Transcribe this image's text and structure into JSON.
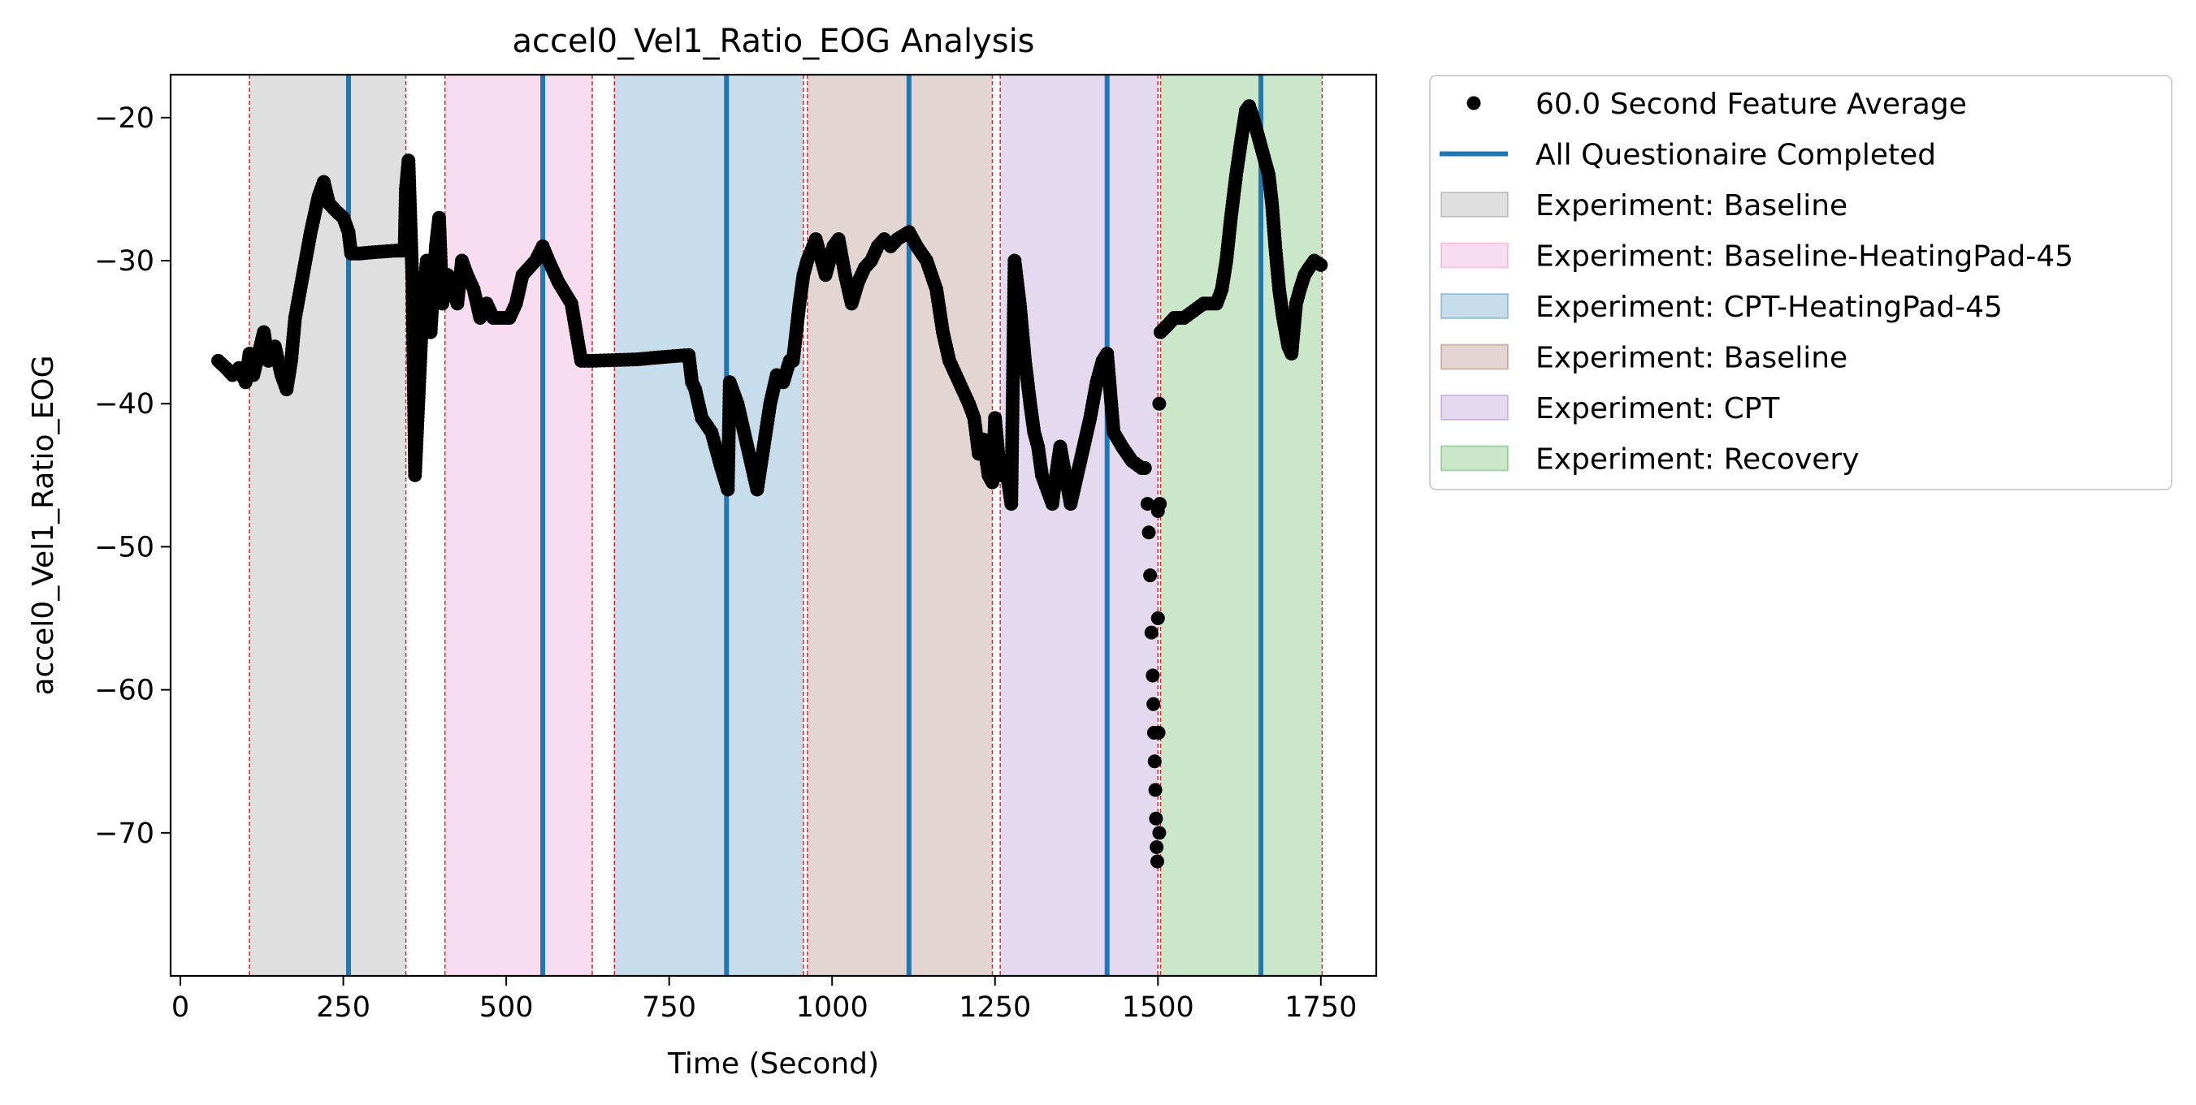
{
  "chart_data": {
    "type": "scatter",
    "title": "accel0_Vel1_Ratio_EOG Analysis",
    "xlabel": "Time (Second)",
    "ylabel": "accel0_Vel1_Ratio_EOG",
    "xlim": [
      -15,
      1835
    ],
    "ylim": [
      -80,
      -17
    ],
    "xticks": [
      0,
      250,
      500,
      750,
      1000,
      1250,
      1500,
      1750
    ],
    "xtick_labels": [
      "0",
      "250",
      "500",
      "750",
      "1000",
      "1250",
      "1500",
      "1750"
    ],
    "yticks": [
      -20,
      -30,
      -40,
      -50,
      -60,
      -70
    ],
    "ytick_labels": [
      "−20",
      "−30",
      "−40",
      "−50",
      "−60",
      "−70"
    ],
    "grid": false,
    "legend_position": "outside-right-top",
    "legend": [
      {
        "label": "60.0 Second Feature Average",
        "kind": "marker",
        "color": "#000000"
      },
      {
        "label": "All Questionaire Completed",
        "kind": "line",
        "color": "#1f77b4"
      },
      {
        "label": "Experiment: Baseline",
        "kind": "patch",
        "color": "#7f7f7f"
      },
      {
        "label": "Experiment: Baseline-HeatingPad-45",
        "kind": "patch",
        "color": "#e377c2"
      },
      {
        "label": "Experiment: CPT-HeatingPad-45",
        "kind": "patch",
        "color": "#1f77b4"
      },
      {
        "label": "Experiment: Baseline",
        "kind": "patch",
        "color": "#8c564b"
      },
      {
        "label": "Experiment: CPT",
        "kind": "patch",
        "color": "#9467bd"
      },
      {
        "label": "Experiment: Recovery",
        "kind": "patch",
        "color": "#2ca02c"
      }
    ],
    "spans": [
      {
        "start": 106,
        "end": 346,
        "color": "#7f7f7f"
      },
      {
        "start": 406,
        "end": 632,
        "color": "#e377c2"
      },
      {
        "start": 666,
        "end": 956,
        "color": "#1f77b4"
      },
      {
        "start": 962,
        "end": 1246,
        "color": "#8c564b"
      },
      {
        "start": 1258,
        "end": 1500,
        "color": "#9467bd"
      },
      {
        "start": 1504,
        "end": 1752,
        "color": "#2ca02c"
      }
    ],
    "boundary_lines": [
      106,
      346,
      406,
      632,
      666,
      956,
      962,
      1246,
      1258,
      1500,
      1504,
      1752
    ],
    "questionnaire_lines": [
      258,
      556,
      838,
      1118,
      1422,
      1658
    ],
    "series": [
      {
        "name": "60.0 Second Feature Average",
        "color": "#000000",
        "knots": [
          [
            58,
            -37
          ],
          [
            70,
            -37.5
          ],
          [
            80,
            -38
          ],
          [
            90,
            -37.5
          ],
          [
            100,
            -38.5
          ],
          [
            106,
            -36.5
          ],
          [
            112,
            -38
          ],
          [
            120,
            -36.5
          ],
          [
            128,
            -35
          ],
          [
            135,
            -37
          ],
          [
            145,
            -36
          ],
          [
            155,
            -38
          ],
          [
            163,
            -39
          ],
          [
            170,
            -37
          ],
          [
            176,
            -34
          ],
          [
            188,
            -31
          ],
          [
            200,
            -28
          ],
          [
            212,
            -25.5
          ],
          [
            220,
            -24.5
          ],
          [
            228,
            -26
          ],
          [
            238,
            -26.5
          ],
          [
            250,
            -27
          ],
          [
            258,
            -28
          ],
          [
            262,
            -29.5
          ],
          [
            275,
            -29.5
          ],
          [
            300,
            -29.4
          ],
          [
            330,
            -29.3
          ],
          [
            344,
            -29.3
          ],
          [
            346,
            -25
          ],
          [
            350,
            -23
          ],
          [
            356,
            -31.3
          ],
          [
            360,
            -45
          ],
          [
            366,
            -39
          ],
          [
            372,
            -33
          ],
          [
            378,
            -30
          ],
          [
            384,
            -35
          ],
          [
            392,
            -29
          ],
          [
            397,
            -27
          ],
          [
            402,
            -33
          ],
          [
            410,
            -31
          ],
          [
            418,
            -32
          ],
          [
            425,
            -33
          ],
          [
            432,
            -30
          ],
          [
            440,
            -31
          ],
          [
            450,
            -32
          ],
          [
            460,
            -34
          ],
          [
            470,
            -33
          ],
          [
            480,
            -34
          ],
          [
            495,
            -34
          ],
          [
            505,
            -34
          ],
          [
            515,
            -33
          ],
          [
            525,
            -31
          ],
          [
            535,
            -30.5
          ],
          [
            545,
            -30
          ],
          [
            556,
            -29
          ],
          [
            565,
            -30
          ],
          [
            580,
            -31.5
          ],
          [
            600,
            -33
          ],
          [
            615,
            -37
          ],
          [
            632,
            -37
          ],
          [
            700,
            -36.9
          ],
          [
            750,
            -36.7
          ],
          [
            780,
            -36.6
          ],
          [
            785,
            -38.5
          ],
          [
            790,
            -39
          ],
          [
            800,
            -41
          ],
          [
            815,
            -42
          ],
          [
            830,
            -44.5
          ],
          [
            840,
            -46
          ],
          [
            843,
            -38.5
          ],
          [
            855,
            -40
          ],
          [
            865,
            -42
          ],
          [
            875,
            -44
          ],
          [
            885,
            -46
          ],
          [
            895,
            -43
          ],
          [
            905,
            -40
          ],
          [
            915,
            -38
          ],
          [
            925,
            -38.5
          ],
          [
            935,
            -37
          ],
          [
            940,
            -37
          ],
          [
            945,
            -35
          ],
          [
            950,
            -33
          ],
          [
            956,
            -31
          ],
          [
            962,
            -30
          ],
          [
            975,
            -28.5
          ],
          [
            990,
            -31
          ],
          [
            1002,
            -29
          ],
          [
            1010,
            -28.5
          ],
          [
            1020,
            -31
          ],
          [
            1030,
            -33
          ],
          [
            1040,
            -31.5
          ],
          [
            1050,
            -30.5
          ],
          [
            1060,
            -30
          ],
          [
            1070,
            -29
          ],
          [
            1080,
            -28.5
          ],
          [
            1090,
            -29
          ],
          [
            1100,
            -28.5
          ],
          [
            1118,
            -28
          ],
          [
            1130,
            -29
          ],
          [
            1145,
            -30
          ],
          [
            1160,
            -32
          ],
          [
            1170,
            -35
          ],
          [
            1180,
            -37
          ],
          [
            1190,
            -38
          ],
          [
            1200,
            -39
          ],
          [
            1210,
            -40
          ],
          [
            1218,
            -41
          ],
          [
            1225,
            -43.5
          ],
          [
            1232,
            -42.5
          ],
          [
            1240,
            -45
          ],
          [
            1246,
            -45.5
          ],
          [
            1250,
            -41
          ],
          [
            1258,
            -45
          ],
          [
            1265,
            -44
          ],
          [
            1272,
            -46
          ],
          [
            1275,
            -47
          ],
          [
            1280,
            -30
          ],
          [
            1288,
            -33
          ],
          [
            1296,
            -37
          ],
          [
            1304,
            -40
          ],
          [
            1310,
            -42
          ],
          [
            1316,
            -43
          ],
          [
            1322,
            -45
          ],
          [
            1330,
            -46
          ],
          [
            1338,
            -47
          ],
          [
            1342,
            -45.5
          ],
          [
            1350,
            -43
          ],
          [
            1358,
            -45
          ],
          [
            1366,
            -47
          ],
          [
            1376,
            -45
          ],
          [
            1386,
            -43
          ],
          [
            1396,
            -41
          ],
          [
            1406,
            -38.5
          ],
          [
            1415,
            -37
          ],
          [
            1422,
            -36.5
          ],
          [
            1432,
            -42
          ],
          [
            1445,
            -43
          ],
          [
            1460,
            -44
          ],
          [
            1475,
            -44.5
          ],
          [
            1480,
            -44.5
          ]
        ],
        "drop": [
          [
            1484,
            -47
          ],
          [
            1486,
            -49
          ],
          [
            1488,
            -52
          ],
          [
            1490,
            -56
          ],
          [
            1492,
            -59
          ],
          [
            1493,
            -61
          ],
          [
            1494,
            -63
          ],
          [
            1495,
            -65
          ],
          [
            1496,
            -67
          ],
          [
            1497,
            -69
          ],
          [
            1498,
            -71
          ],
          [
            1499,
            -72
          ],
          [
            1500,
            -47.5
          ],
          [
            1500,
            -55
          ],
          [
            1501,
            -63
          ],
          [
            1502,
            -70
          ],
          [
            1502,
            -40
          ],
          [
            1503,
            -47
          ]
        ],
        "knots2": [
          [
            1504,
            -35
          ],
          [
            1515,
            -34.5
          ],
          [
            1525,
            -34
          ],
          [
            1540,
            -34
          ],
          [
            1555,
            -33.5
          ],
          [
            1570,
            -33
          ],
          [
            1580,
            -33
          ],
          [
            1590,
            -33
          ],
          [
            1598,
            -32
          ],
          [
            1605,
            -30
          ],
          [
            1612,
            -27
          ],
          [
            1620,
            -24
          ],
          [
            1628,
            -21.5
          ],
          [
            1635,
            -19.5
          ],
          [
            1640,
            -19.2
          ],
          [
            1646,
            -20
          ],
          [
            1652,
            -21
          ],
          [
            1658,
            -22
          ],
          [
            1664,
            -23
          ],
          [
            1670,
            -24
          ],
          [
            1675,
            -26
          ],
          [
            1680,
            -29
          ],
          [
            1686,
            -32
          ],
          [
            1692,
            -34
          ],
          [
            1700,
            -36
          ],
          [
            1705,
            -36.5
          ],
          [
            1712,
            -33
          ],
          [
            1718,
            -32
          ],
          [
            1725,
            -31
          ],
          [
            1732,
            -30.5
          ],
          [
            1740,
            -30
          ],
          [
            1750,
            -30.3
          ]
        ]
      }
    ]
  }
}
